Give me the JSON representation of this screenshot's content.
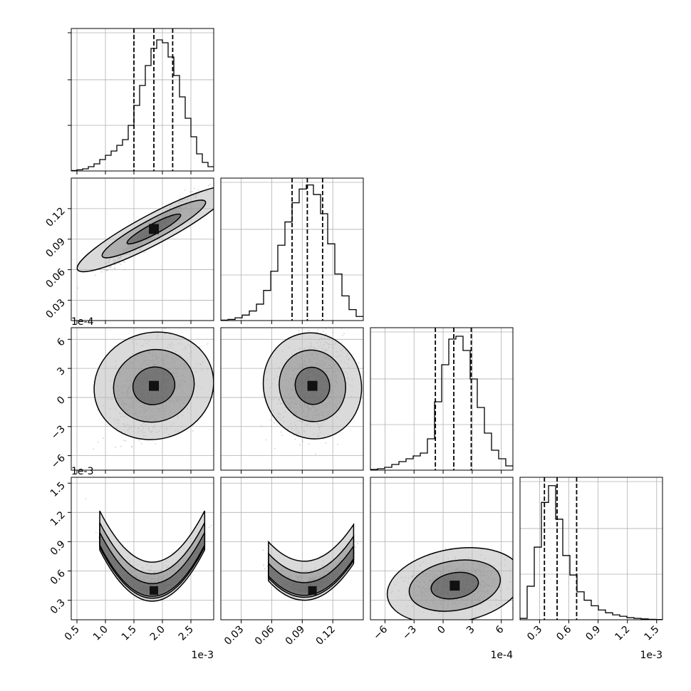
{
  "chart_data": {
    "type": "corner",
    "grid": true,
    "dims": [
      {
        "range": [
          0.4,
          2.9
        ],
        "ticks": [
          0.5,
          1.0,
          1.5,
          2.0,
          2.5
        ],
        "tick_labels": [
          "0.5",
          "1.0",
          "1.5",
          "2.0",
          "2.5"
        ],
        "offset": "1e-3",
        "center": 1.85,
        "sigma": 0.33,
        "quantiles": [
          1.5,
          1.85,
          2.18
        ]
      },
      {
        "range": [
          0.01,
          0.15
        ],
        "ticks": [
          0.03,
          0.06,
          0.09,
          0.12
        ],
        "tick_labels": [
          "0.03",
          "0.06",
          "0.09",
          "0.12"
        ],
        "offset": "",
        "center": 0.1,
        "sigma": 0.015,
        "quantiles": [
          0.08,
          0.095,
          0.11
        ]
      },
      {
        "range": [
          -7.5,
          7.2
        ],
        "ticks": [
          -6,
          -3,
          0,
          3,
          6
        ],
        "tick_labels": [
          "−6",
          "−3",
          "0",
          "3",
          "6"
        ],
        "offset": "1e-4",
        "center": 1.2,
        "sigma": 2.2,
        "quantiles": [
          -0.8,
          1.1,
          2.9
        ]
      },
      {
        "range": [
          0.1,
          1.56
        ],
        "ticks": [
          0.3,
          0.6,
          0.9,
          1.2,
          1.5
        ],
        "tick_labels": [
          "0.3",
          "0.6",
          "0.9",
          "1.2",
          "1.5"
        ],
        "offset": "1e-3",
        "center": 0.45,
        "sigma": 0.15,
        "quantiles": [
          0.35,
          0.48,
          0.68
        ]
      }
    ],
    "histograms": [
      [
        0.3,
        0.8,
        1.5,
        3,
        5,
        8,
        11,
        14,
        18,
        22,
        32,
        46,
        60,
        74,
        86,
        92,
        90,
        80,
        67,
        52,
        37,
        24,
        12,
        6,
        3
      ],
      [
        0.3,
        0.8,
        2,
        4,
        7,
        12,
        22,
        36,
        55,
        72,
        86,
        96,
        99,
        92,
        78,
        56,
        34,
        18,
        8,
        3
      ],
      [
        0.5,
        1,
        2,
        4,
        6,
        8,
        10,
        12,
        22,
        48,
        74,
        92,
        94,
        84,
        64,
        44,
        26,
        14,
        8,
        3
      ],
      [
        1,
        24,
        52,
        84,
        96,
        72,
        46,
        32,
        20,
        14,
        10,
        7,
        5,
        3.5,
        2.5,
        1.5,
        1,
        0.6,
        0.3,
        0.2
      ]
    ],
    "hist_ymax": [
      100,
      104,
      100,
      102
    ]
  }
}
